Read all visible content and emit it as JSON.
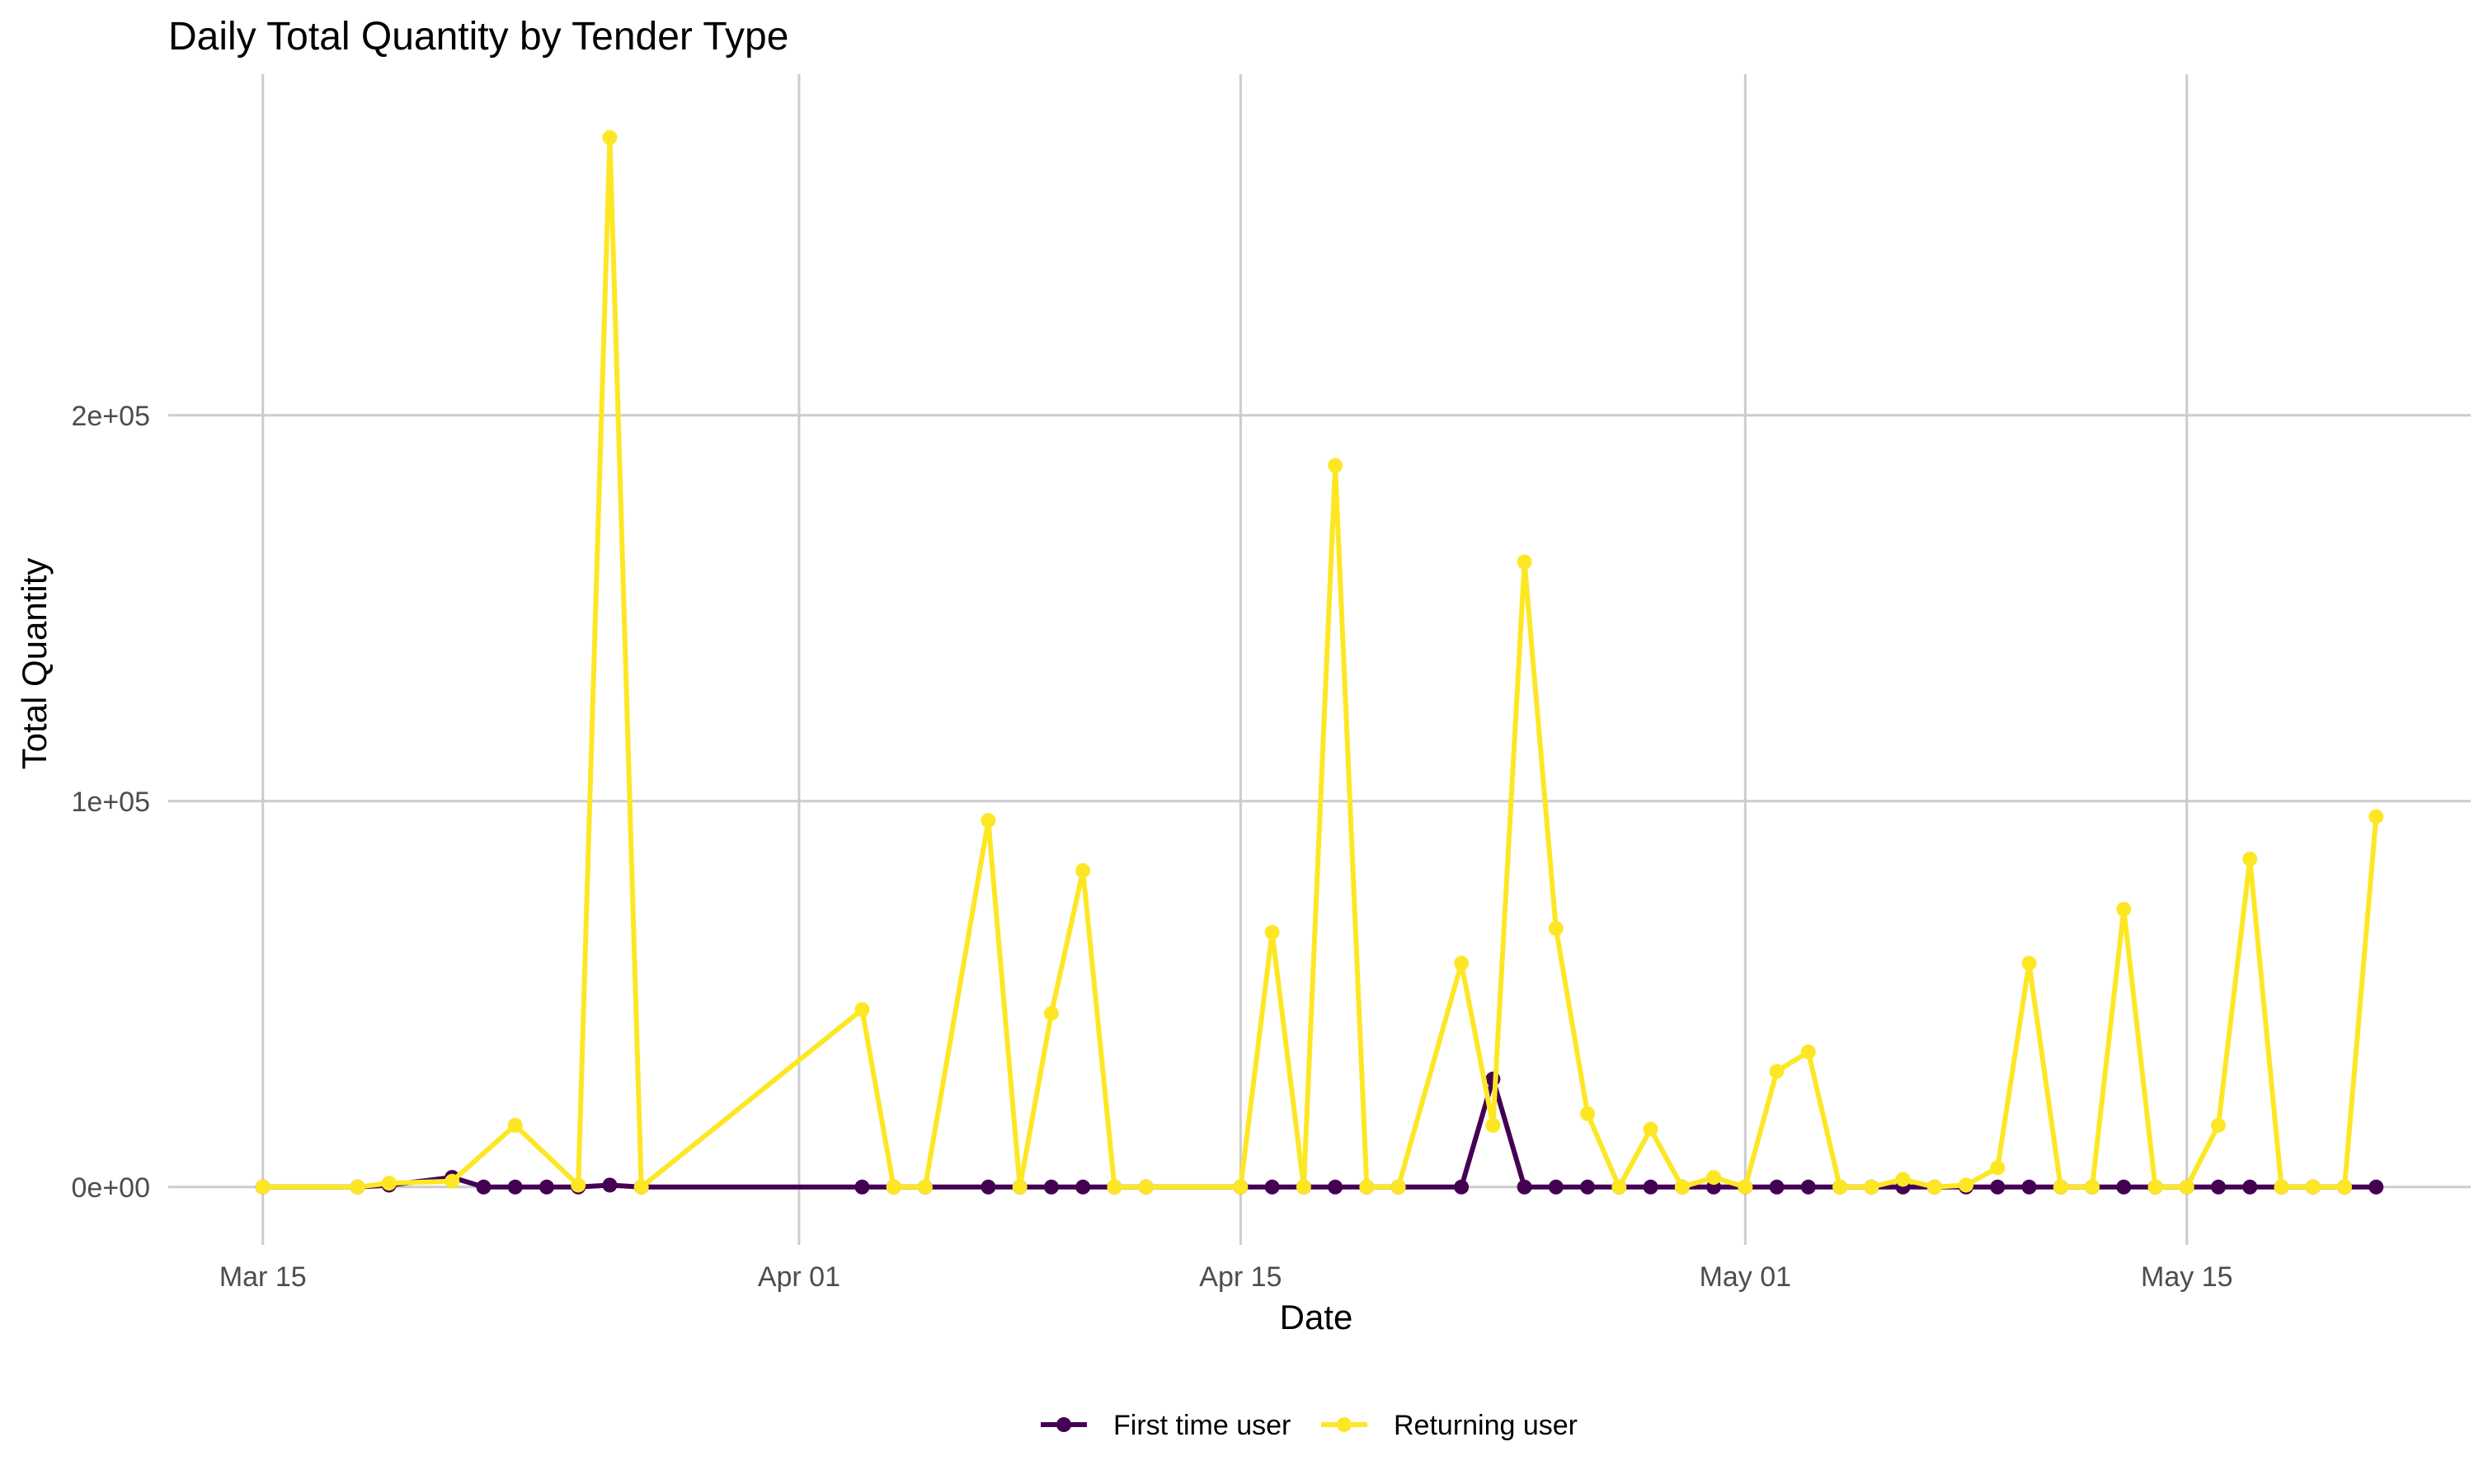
{
  "chart_data": {
    "type": "line",
    "title": "Daily Total Quantity by Tender Type",
    "xlabel": "Date",
    "ylabel": "Total Quantity",
    "x_ticks": [
      {
        "date": "2024-03-15",
        "label": "Mar 15"
      },
      {
        "date": "2024-04-01",
        "label": "Apr 01"
      },
      {
        "date": "2024-04-15",
        "label": "Apr 15"
      },
      {
        "date": "2024-05-01",
        "label": "May 01"
      },
      {
        "date": "2024-05-15",
        "label": "May 15"
      }
    ],
    "y_ticks": [
      {
        "value": 0,
        "label": "0e+00"
      },
      {
        "value": 100000,
        "label": "1e+05"
      },
      {
        "value": 200000,
        "label": "2e+05"
      }
    ],
    "xlim": [
      "2024-03-12",
      "2024-05-24"
    ],
    "ylim": [
      -15000,
      282000
    ],
    "grid": true,
    "legend_position": "bottom",
    "series": [
      {
        "name": "First time user",
        "color": "#440154",
        "points": [
          [
            "2024-03-15",
            0
          ],
          [
            "2024-03-18",
            0
          ],
          [
            "2024-03-19",
            500
          ],
          [
            "2024-03-21",
            2500
          ],
          [
            "2024-03-22",
            0
          ],
          [
            "2024-03-23",
            0
          ],
          [
            "2024-03-24",
            0
          ],
          [
            "2024-03-25",
            0
          ],
          [
            "2024-03-26",
            500
          ],
          [
            "2024-03-27",
            0
          ],
          [
            "2024-04-03",
            0
          ],
          [
            "2024-04-04",
            0
          ],
          [
            "2024-04-05",
            0
          ],
          [
            "2024-04-07",
            0
          ],
          [
            "2024-04-08",
            0
          ],
          [
            "2024-04-09",
            0
          ],
          [
            "2024-04-10",
            0
          ],
          [
            "2024-04-11",
            0
          ],
          [
            "2024-04-12",
            0
          ],
          [
            "2024-04-15",
            0
          ],
          [
            "2024-04-16",
            0
          ],
          [
            "2024-04-17",
            0
          ],
          [
            "2024-04-18",
            0
          ],
          [
            "2024-04-19",
            0
          ],
          [
            "2024-04-20",
            0
          ],
          [
            "2024-04-22",
            0
          ],
          [
            "2024-04-23",
            28000
          ],
          [
            "2024-04-24",
            0
          ],
          [
            "2024-04-25",
            0
          ],
          [
            "2024-04-26",
            0
          ],
          [
            "2024-04-27",
            0
          ],
          [
            "2024-04-28",
            0
          ],
          [
            "2024-04-29",
            0
          ],
          [
            "2024-04-30",
            0
          ],
          [
            "2024-05-01",
            0
          ],
          [
            "2024-05-02",
            0
          ],
          [
            "2024-05-03",
            0
          ],
          [
            "2024-05-04",
            0
          ],
          [
            "2024-05-05",
            0
          ],
          [
            "2024-05-06",
            0
          ],
          [
            "2024-05-07",
            0
          ],
          [
            "2024-05-08",
            0
          ],
          [
            "2024-05-09",
            0
          ],
          [
            "2024-05-10",
            0
          ],
          [
            "2024-05-11",
            0
          ],
          [
            "2024-05-12",
            0
          ],
          [
            "2024-05-13",
            0
          ],
          [
            "2024-05-14",
            0
          ],
          [
            "2024-05-15",
            0
          ],
          [
            "2024-05-16",
            0
          ],
          [
            "2024-05-17",
            0
          ],
          [
            "2024-05-18",
            0
          ],
          [
            "2024-05-19",
            0
          ],
          [
            "2024-05-20",
            0
          ],
          [
            "2024-05-21",
            0
          ]
        ]
      },
      {
        "name": "Returning user",
        "color": "#fde725",
        "points": [
          [
            "2024-03-15",
            0
          ],
          [
            "2024-03-18",
            0
          ],
          [
            "2024-03-19",
            1000
          ],
          [
            "2024-03-21",
            1500
          ],
          [
            "2024-03-23",
            16000
          ],
          [
            "2024-03-25",
            500
          ],
          [
            "2024-03-26",
            272000
          ],
          [
            "2024-03-27",
            0
          ],
          [
            "2024-04-03",
            46000
          ],
          [
            "2024-04-04",
            0
          ],
          [
            "2024-04-05",
            0
          ],
          [
            "2024-04-07",
            95000
          ],
          [
            "2024-04-08",
            0
          ],
          [
            "2024-04-09",
            45000
          ],
          [
            "2024-04-10",
            82000
          ],
          [
            "2024-04-11",
            0
          ],
          [
            "2024-04-12",
            0
          ],
          [
            "2024-04-15",
            0
          ],
          [
            "2024-04-16",
            66000
          ],
          [
            "2024-04-17",
            0
          ],
          [
            "2024-04-18",
            187000
          ],
          [
            "2024-04-19",
            0
          ],
          [
            "2024-04-20",
            0
          ],
          [
            "2024-04-22",
            58000
          ],
          [
            "2024-04-23",
            16000
          ],
          [
            "2024-04-24",
            162000
          ],
          [
            "2024-04-25",
            67000
          ],
          [
            "2024-04-26",
            19000
          ],
          [
            "2024-04-27",
            0
          ],
          [
            "2024-04-28",
            15000
          ],
          [
            "2024-04-29",
            0
          ],
          [
            "2024-04-30",
            2500
          ],
          [
            "2024-05-01",
            0
          ],
          [
            "2024-05-02",
            30000
          ],
          [
            "2024-05-03",
            35000
          ],
          [
            "2024-05-04",
            0
          ],
          [
            "2024-05-05",
            0
          ],
          [
            "2024-05-06",
            2000
          ],
          [
            "2024-05-07",
            0
          ],
          [
            "2024-05-08",
            500
          ],
          [
            "2024-05-09",
            5000
          ],
          [
            "2024-05-10",
            58000
          ],
          [
            "2024-05-11",
            0
          ],
          [
            "2024-05-12",
            0
          ],
          [
            "2024-05-13",
            72000
          ],
          [
            "2024-05-14",
            0
          ],
          [
            "2024-05-15",
            0
          ],
          [
            "2024-05-16",
            16000
          ],
          [
            "2024-05-17",
            85000
          ],
          [
            "2024-05-18",
            0
          ],
          [
            "2024-05-19",
            0
          ],
          [
            "2024-05-20",
            0
          ],
          [
            "2024-05-21",
            96000
          ]
        ]
      }
    ]
  }
}
